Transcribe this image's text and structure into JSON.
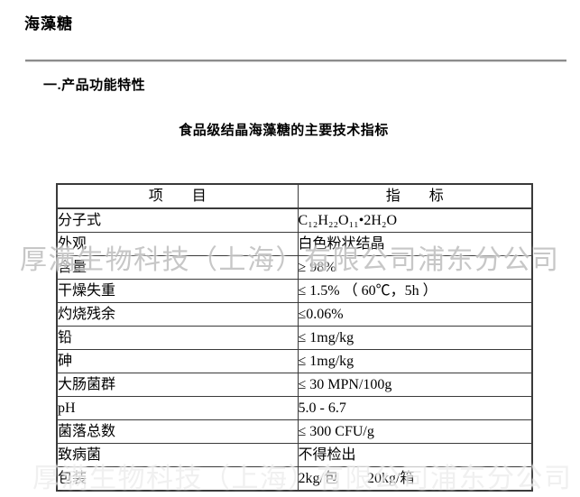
{
  "page": {
    "title": "海藻糖",
    "section_heading": "一.产品功能特性",
    "table_title": "食品级结晶海藻糖的主要技术指标",
    "watermark": "厚满生物科技（上海）有限公司浦东分公司"
  },
  "table": {
    "headers": [
      "项　　目",
      "指　　标"
    ],
    "rows": [
      {
        "item": "分子式",
        "value": "C₁₂H₂₂O₁₁•2H₂O"
      },
      {
        "item": "外观",
        "value": "白色粉状结晶"
      },
      {
        "item": "含量",
        "value": "≥ 98%"
      },
      {
        "item": "干燥失重",
        "value": "≤ 1.5% （ 60℃，5h ）"
      },
      {
        "item": "灼烧残余",
        "value": "≤0.06%"
      },
      {
        "item": "铅",
        "value": "≤ 1mg/kg"
      },
      {
        "item": "砷",
        "value": "≤ 1mg/kg"
      },
      {
        "item": "大肠菌群",
        "value": "≤ 30 MPN/100g"
      },
      {
        "item": "pH",
        "value": "5.0 - 6.7"
      },
      {
        "item": "菌落总数",
        "value": "≤ 300 CFU/g"
      },
      {
        "item": "致病菌",
        "value": "不得检出"
      },
      {
        "item": "包装",
        "value": "2kg/包　　20kg/箱"
      }
    ]
  }
}
